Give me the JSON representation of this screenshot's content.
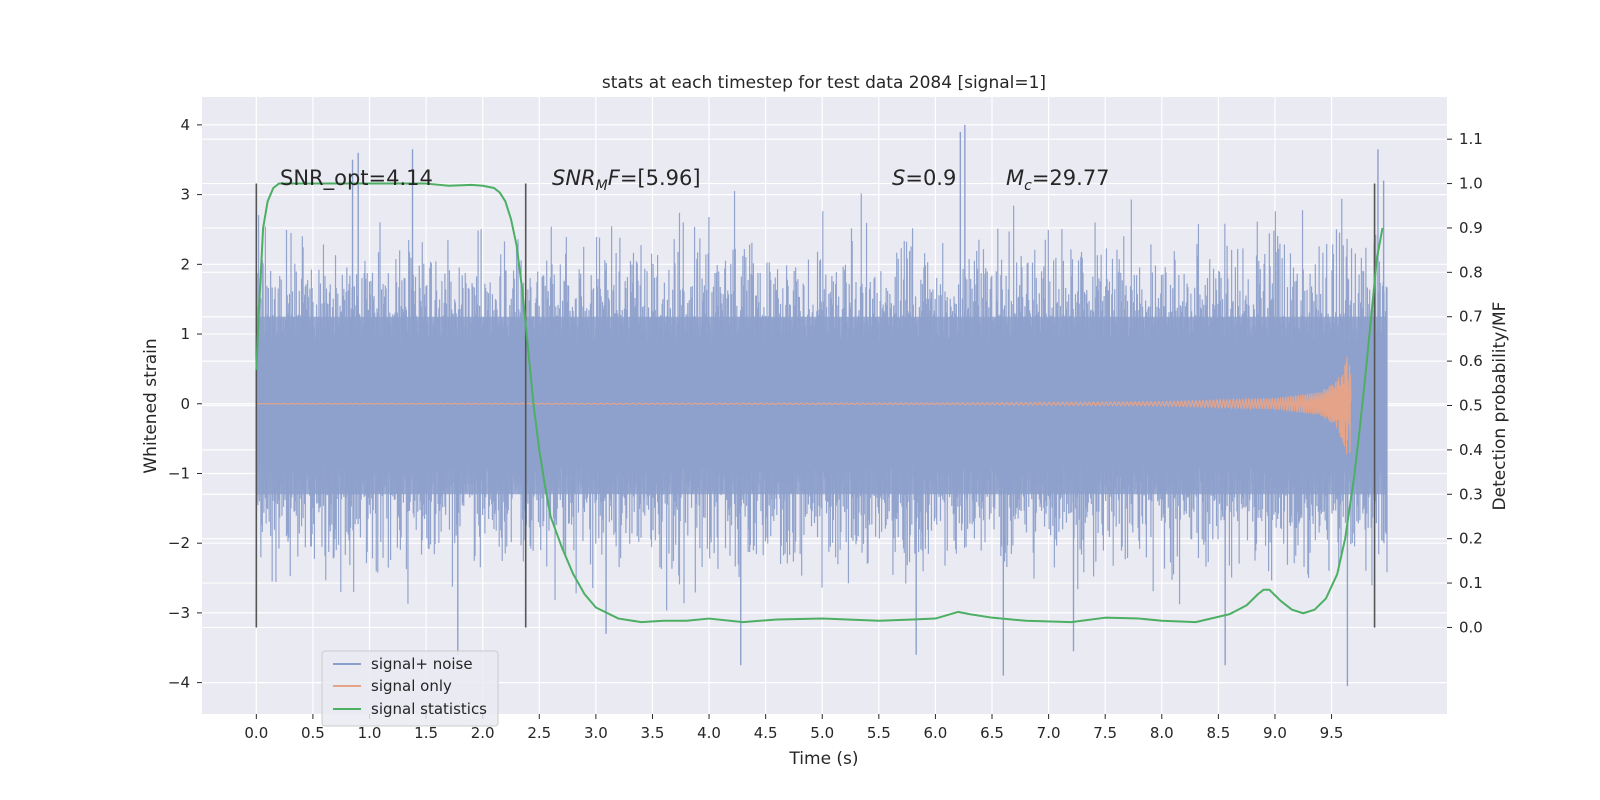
{
  "chart_data": {
    "type": "line",
    "title": "stats at each timestep for test data 2084 [signal=1]",
    "xlabel": "Time (s)",
    "ylabel": "Whitened strain",
    "y2label": "Detection probability/MF",
    "xlim": [
      -0.48,
      10.52
    ],
    "ylim": [
      -4.45,
      4.4
    ],
    "y2lim": [
      -0.195,
      1.195
    ],
    "xticks": [
      0.0,
      0.5,
      1.0,
      1.5,
      2.0,
      2.5,
      3.0,
      3.5,
      4.0,
      4.5,
      5.0,
      5.5,
      6.0,
      6.5,
      7.0,
      7.5,
      8.0,
      8.5,
      9.0,
      9.5
    ],
    "xtick_labels": [
      "0.0",
      "0.5",
      "1.0",
      "1.5",
      "2.0",
      "2.5",
      "3.0",
      "3.5",
      "4.0",
      "4.5",
      "5.0",
      "5.5",
      "6.0",
      "6.5",
      "7.0",
      "7.5",
      "8.0",
      "8.5",
      "9.0",
      "9.5"
    ],
    "yticks": [
      -4,
      -3,
      -2,
      -1,
      0,
      1,
      2,
      3,
      4
    ],
    "ytick_labels": [
      "−4",
      "−3",
      "−2",
      "−1",
      "0",
      "1",
      "2",
      "3",
      "4"
    ],
    "y2ticks": [
      0.0,
      0.1,
      0.2,
      0.3,
      0.4,
      0.5,
      0.6,
      0.7,
      0.8,
      0.9,
      1.0,
      1.1
    ],
    "y2tick_labels": [
      "0.0",
      "0.1",
      "0.2",
      "0.3",
      "0.4",
      "0.5",
      "0.6",
      "0.7",
      "0.8",
      "0.9",
      "1.0",
      "1.1"
    ],
    "grid": true,
    "legend_position": "lower-left",
    "colors": {
      "signal_noise": "#8da0cb",
      "signal_only": "#e5a48a",
      "statistics": "#4caf63",
      "markers": "#555555",
      "background": "#eaeaf2",
      "grid": "#ffffff"
    },
    "series": [
      {
        "name": "signal+ noise",
        "axis": "left",
        "x_range": [
          0.0,
          9.99
        ],
        "envelope": {
          "core": [
            -1.3,
            1.25
          ],
          "typical_peak": [
            -2.6,
            2.5
          ],
          "max": 4.0,
          "min": -4.05
        },
        "peaks": [
          {
            "x": 0.85,
            "y": 3.5
          },
          {
            "x": 0.9,
            "y": 3.6
          },
          {
            "x": 1.38,
            "y": 3.65
          },
          {
            "x": 1.78,
            "y": -3.6
          },
          {
            "x": 4.28,
            "y": -3.75
          },
          {
            "x": 6.22,
            "y": 3.9
          },
          {
            "x": 6.26,
            "y": 4.0
          },
          {
            "x": 6.6,
            "y": -3.9
          },
          {
            "x": 8.56,
            "y": -3.75
          },
          {
            "x": 9.64,
            "y": -4.05
          },
          {
            "x": 9.91,
            "y": 3.65
          },
          {
            "x": 9.96,
            "y": 3.2
          },
          {
            "x": 3.09,
            "y": -3.3
          },
          {
            "x": 5.83,
            "y": -3.6
          },
          {
            "x": 7.22,
            "y": -3.55
          }
        ]
      },
      {
        "name": "signal only",
        "axis": "left",
        "type": "chirp",
        "x_range": [
          0.0,
          9.67
        ],
        "amplitude": [
          {
            "x": 0.0,
            "y": 0.003
          },
          {
            "x": 6.0,
            "y": 0.01
          },
          {
            "x": 8.0,
            "y": 0.03
          },
          {
            "x": 9.0,
            "y": 0.08
          },
          {
            "x": 9.4,
            "y": 0.17
          },
          {
            "x": 9.55,
            "y": 0.35
          },
          {
            "x": 9.63,
            "y": 0.7
          },
          {
            "x": 9.66,
            "y": 0.95
          },
          {
            "x": 9.67,
            "y": 0.2
          }
        ]
      },
      {
        "name": "signal statistics",
        "axis": "right",
        "x": [
          0.0,
          0.03,
          0.06,
          0.1,
          0.15,
          0.2,
          0.3,
          0.5,
          1.0,
          1.5,
          1.7,
          1.9,
          2.0,
          2.1,
          2.15,
          2.2,
          2.25,
          2.3,
          2.35,
          2.4,
          2.45,
          2.5,
          2.55,
          2.6,
          2.7,
          2.8,
          2.9,
          3.0,
          3.2,
          3.4,
          3.6,
          3.8,
          4.0,
          4.3,
          4.6,
          5.0,
          5.5,
          5.8,
          6.0,
          6.2,
          6.3,
          6.5,
          6.8,
          7.2,
          7.5,
          7.8,
          8.0,
          8.3,
          8.6,
          8.75,
          8.85,
          8.9,
          8.95,
          9.05,
          9.15,
          9.25,
          9.35,
          9.45,
          9.55,
          9.62,
          9.7,
          9.75,
          9.8,
          9.85,
          9.9,
          9.95
        ],
        "y": [
          0.58,
          0.75,
          0.9,
          0.96,
          0.99,
          1.0,
          1.0,
          1.0,
          1.0,
          1.0,
          0.995,
          0.997,
          0.995,
          0.99,
          0.98,
          0.96,
          0.92,
          0.86,
          0.76,
          0.63,
          0.5,
          0.4,
          0.32,
          0.25,
          0.18,
          0.12,
          0.075,
          0.045,
          0.02,
          0.012,
          0.015,
          0.015,
          0.02,
          0.012,
          0.018,
          0.02,
          0.015,
          0.018,
          0.02,
          0.035,
          0.03,
          0.022,
          0.015,
          0.012,
          0.022,
          0.02,
          0.015,
          0.012,
          0.03,
          0.05,
          0.075,
          0.085,
          0.085,
          0.06,
          0.04,
          0.032,
          0.04,
          0.065,
          0.12,
          0.2,
          0.34,
          0.45,
          0.57,
          0.7,
          0.83,
          0.9
        ]
      }
    ],
    "vertical_markers": [
      {
        "x": 0.0,
        "y2_range": [
          0.0,
          1.0
        ]
      },
      {
        "x": 2.38,
        "y2_range": [
          0.0,
          1.0
        ]
      },
      {
        "x": 9.88,
        "y2_range": [
          0.0,
          1.0
        ]
      }
    ],
    "annotations": {
      "snr_opt": "SNR_opt=4.14",
      "snr_mf_a": "SNR",
      "snr_mf_sub": "M",
      "snr_mf_b": "F",
      "snr_mf_c": "=[5.96]",
      "s_a": "S",
      "s_b": "=0.9",
      "mc_a": "M",
      "mc_sub": "c",
      "mc_b": "=29.77"
    },
    "legend": [
      "signal+ noise",
      "signal only",
      "signal statistics"
    ]
  }
}
